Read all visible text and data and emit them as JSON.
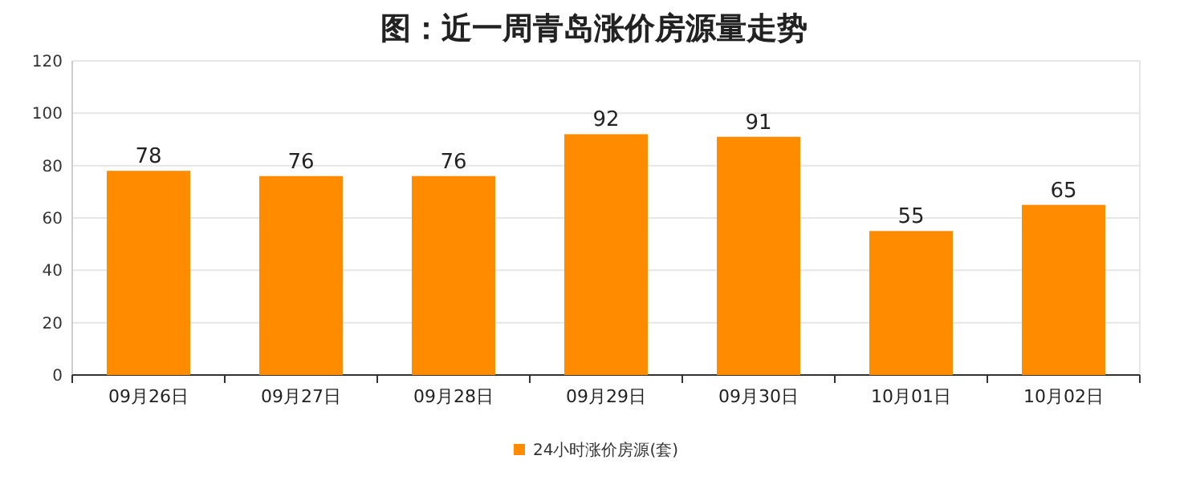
{
  "chart_data": {
    "type": "bar",
    "title": "图：近一周青岛涨价房源量走势",
    "categories": [
      "09月26日",
      "09月27日",
      "09月28日",
      "09月29日",
      "09月30日",
      "10月01日",
      "10月02日"
    ],
    "series": [
      {
        "name": "24小时涨价房源(套)",
        "color": "#ff8c00",
        "values": [
          78,
          76,
          76,
          92,
          91,
          55,
          65
        ]
      }
    ],
    "ylim": [
      0,
      120
    ],
    "yticks": [
      0,
      20,
      40,
      60,
      80,
      100,
      120
    ],
    "grid": "y",
    "legend": "bottom",
    "data_labels": true
  }
}
